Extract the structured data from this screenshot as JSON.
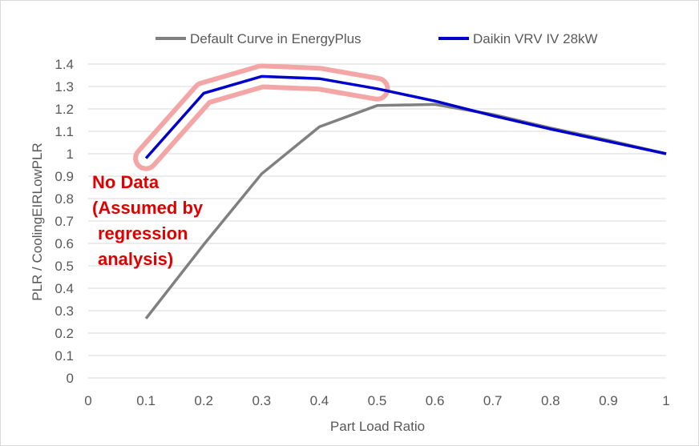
{
  "chart_data": {
    "type": "line",
    "title": "",
    "xlabel": "Part Load Ratio",
    "ylabel": "PLR / CoolingEIRLowPLR",
    "xlim": [
      0,
      1
    ],
    "ylim": [
      0,
      1.4
    ],
    "x_ticks": [
      "0",
      "0.1",
      "0.2",
      "0.3",
      "0.4",
      "0.5",
      "0.6",
      "0.7",
      "0.8",
      "0.9",
      "1"
    ],
    "y_ticks": [
      "0",
      "0.1",
      "0.2",
      "0.3",
      "0.4",
      "0.5",
      "0.6",
      "0.7",
      "0.8",
      "0.9",
      "1",
      "1.1",
      "1.2",
      "1.3",
      "1.4"
    ],
    "grid": "horizontal",
    "legend_position": "top",
    "series": [
      {
        "name": "Default Curve in EnergyPlus",
        "color": "#808080",
        "x": [
          0.1,
          0.2,
          0.3,
          0.4,
          0.5,
          0.6,
          0.7,
          0.8,
          0.9,
          1.0
        ],
        "y": [
          0.265,
          0.595,
          0.91,
          1.12,
          1.215,
          1.22,
          1.175,
          1.115,
          1.06,
          1.0
        ]
      },
      {
        "name": "Daikin VRV IV 28kW",
        "color": "#0000cc",
        "x": [
          0.1,
          0.2,
          0.3,
          0.4,
          0.5,
          0.6,
          0.7,
          0.8,
          0.9,
          1.0
        ],
        "y": [
          0.98,
          1.27,
          1.345,
          1.335,
          1.29,
          1.235,
          1.17,
          1.11,
          1.055,
          1.0
        ]
      }
    ],
    "highlight": {
      "color": "#f4a6a6",
      "x": [
        0.1,
        0.2,
        0.3,
        0.4,
        0.5
      ],
      "y": [
        0.98,
        1.27,
        1.345,
        1.335,
        1.29
      ]
    },
    "annotation": {
      "lines": [
        "No Data",
        "(Assumed by",
        "regression",
        "analysis)"
      ],
      "color": "#e00000"
    }
  }
}
